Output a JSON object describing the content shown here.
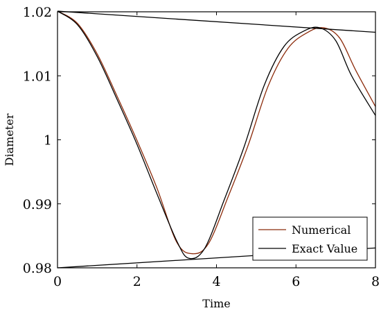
{
  "chart_data": {
    "type": "line",
    "xlabel": "Time",
    "ylabel": "Diameter",
    "xlim": [
      0,
      8
    ],
    "ylim": [
      0.98,
      1.02
    ],
    "x_ticks": [
      0,
      2,
      4,
      6,
      8
    ],
    "x_tick_labels": [
      "0",
      "2",
      "4",
      "6",
      "8"
    ],
    "y_ticks": [
      0.98,
      0.99,
      1.0,
      1.01,
      1.02
    ],
    "y_tick_labels": [
      "0.98",
      "0.99",
      "1",
      "1.01",
      "1.02"
    ],
    "grid": false,
    "legend_position": "bottom-right",
    "legend": [
      "Numerical",
      "Exact Value"
    ],
    "series": [
      {
        "name": "Numerical",
        "color": "#8b2a0a",
        "x": [
          0,
          0.5,
          1.0,
          1.5,
          2.0,
          2.5,
          3.0,
          3.4,
          3.8,
          4.3,
          4.8,
          5.3,
          5.8,
          6.3,
          6.7,
          7.1,
          7.5,
          8.0
        ],
        "y": [
          1.0201,
          1.0182,
          1.0134,
          1.0068,
          0.9999,
          0.9925,
          0.984,
          0.9822,
          0.9838,
          0.9912,
          0.9992,
          1.0084,
          1.0143,
          1.0168,
          1.0175,
          1.0159,
          1.0109,
          1.0052
        ]
      },
      {
        "name": "Exact Value",
        "color": "#000000",
        "x": [
          0,
          0.5,
          1.0,
          1.5,
          2.0,
          2.5,
          3.0,
          3.3,
          3.7,
          4.2,
          4.7,
          5.2,
          5.7,
          6.2,
          6.6,
          7.0,
          7.4,
          8.0
        ],
        "y": [
          1.0201,
          1.018,
          1.013,
          1.0063,
          0.9993,
          0.9916,
          0.9842,
          0.9815,
          0.983,
          0.9907,
          0.999,
          1.0085,
          1.0146,
          1.017,
          1.0175,
          1.0155,
          1.01,
          1.0038
        ]
      },
      {
        "name": "",
        "color": "#000000",
        "x": [
          0,
          8
        ],
        "y": [
          1.0201,
          1.0168
        ]
      },
      {
        "name": "",
        "color": "#000000",
        "x": [
          0,
          8
        ],
        "y": [
          0.98,
          0.9831
        ]
      }
    ]
  }
}
